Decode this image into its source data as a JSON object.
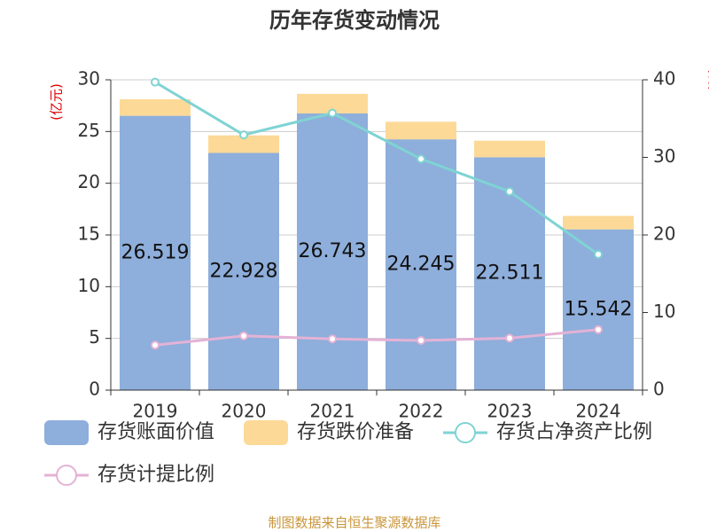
{
  "chart_data": {
    "type": "bar-line",
    "title": "历年存货变动情况",
    "y_label": "(亿元)",
    "y2_label": "(%)",
    "categories": [
      "2019",
      "2020",
      "2021",
      "2022",
      "2023",
      "2024"
    ],
    "series": [
      {
        "name": "存货账面价值",
        "type": "bar",
        "color": "#8eaedb",
        "values": [
          26.519,
          22.928,
          26.743,
          24.245,
          22.511,
          15.542
        ]
      },
      {
        "name": "存货跌价准备",
        "type": "bar",
        "color": "#fcd997",
        "values": [
          1.6,
          1.7,
          1.9,
          1.7,
          1.6,
          1.3
        ]
      },
      {
        "name": "存货占净资产比例",
        "type": "line",
        "axis": "y2",
        "color": "#7fd3d4",
        "values": [
          39.7,
          32.9,
          35.7,
          29.8,
          25.6,
          17.5
        ]
      },
      {
        "name": "存货计提比例",
        "type": "line",
        "axis": "y2",
        "color": "#e4b2d5",
        "values": [
          5.8,
          7.0,
          6.6,
          6.4,
          6.7,
          7.8
        ]
      }
    ],
    "ylim": [
      0,
      30
    ],
    "yticks": [
      0,
      5,
      10,
      15,
      20,
      25,
      30
    ],
    "y2lim": [
      0,
      40
    ],
    "y2ticks": [
      0,
      10,
      20,
      30,
      40
    ],
    "grid": true,
    "source": "制图数据来自恒生聚源数据库"
  }
}
